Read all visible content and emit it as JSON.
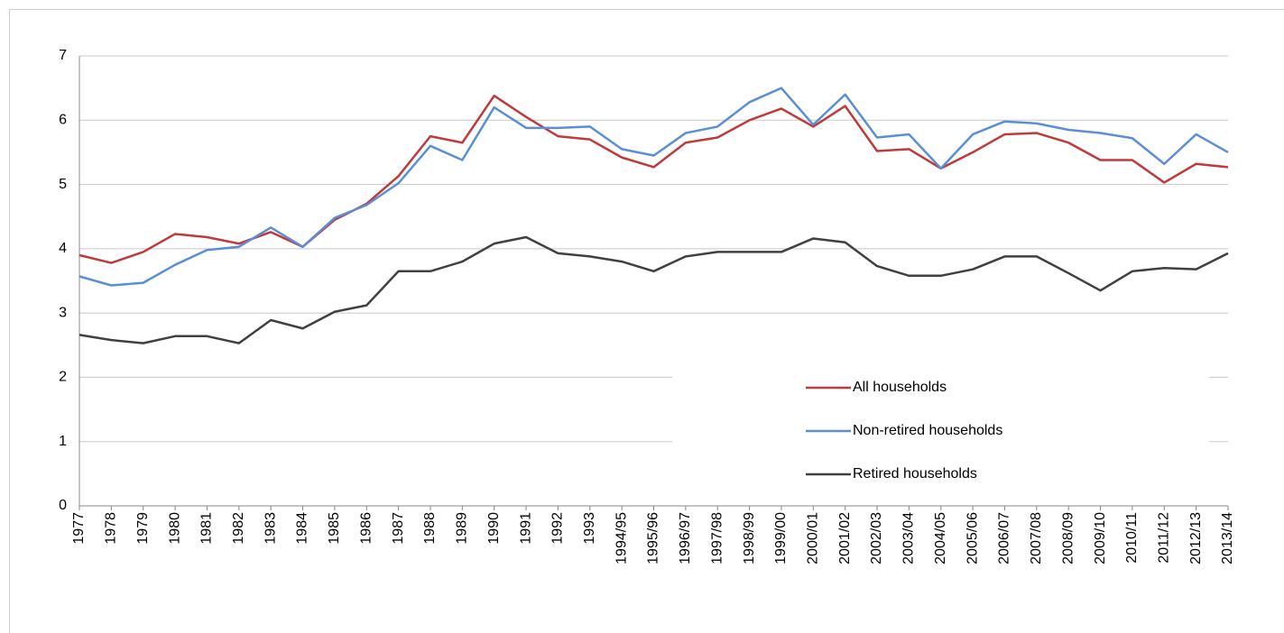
{
  "chart_data": {
    "type": "line",
    "categories": [
      "1977",
      "1978",
      "1979",
      "1980",
      "1981",
      "1982",
      "1983",
      "1984",
      "1985",
      "1986",
      "1987",
      "1988",
      "1989",
      "1990",
      "1991",
      "1992",
      "1993",
      "1994/95",
      "1995/96",
      "1996/97",
      "1997/98",
      "1998/99",
      "1999/00",
      "2000/01",
      "2001/02",
      "2002/03",
      "2003/04",
      "2004/05",
      "2005/06",
      "2006/07",
      "2007/08",
      "2008/09",
      "2009/10",
      "2010/11",
      "2011/12",
      "2012/13",
      "2013/14"
    ],
    "series": [
      {
        "name": "All households",
        "color": "#c0393b",
        "values": [
          3.9,
          3.78,
          3.95,
          4.23,
          4.18,
          4.08,
          4.26,
          4.03,
          4.45,
          4.7,
          5.13,
          5.75,
          5.65,
          6.38,
          6.05,
          5.75,
          5.7,
          5.42,
          5.27,
          5.65,
          5.73,
          6.0,
          6.18,
          5.9,
          6.22,
          5.52,
          5.55,
          5.25,
          5.5,
          5.78,
          5.8,
          5.65,
          5.38,
          5.38,
          5.03,
          5.32,
          5.27
        ]
      },
      {
        "name": "Non-retired households",
        "color": "#5a8fd8",
        "values": [
          3.57,
          3.43,
          3.47,
          3.75,
          3.98,
          4.03,
          4.33,
          4.03,
          4.48,
          4.68,
          5.02,
          5.6,
          5.38,
          6.2,
          5.88,
          5.88,
          5.9,
          5.55,
          5.45,
          5.8,
          5.9,
          6.28,
          6.5,
          5.93,
          6.4,
          5.73,
          5.78,
          5.25,
          5.78,
          5.98,
          5.95,
          5.85,
          5.8,
          5.72,
          5.32,
          5.78,
          5.5
        ]
      },
      {
        "name": "Retired households",
        "color": "#404040",
        "values": [
          2.66,
          2.58,
          2.53,
          2.64,
          2.64,
          2.53,
          2.89,
          2.76,
          3.02,
          3.12,
          3.65,
          3.65,
          3.8,
          4.08,
          4.18,
          3.93,
          3.88,
          3.8,
          3.65,
          3.88,
          3.95,
          3.95,
          3.95,
          4.16,
          4.1,
          3.73,
          3.58,
          3.58,
          3.68,
          3.88,
          3.88,
          3.62,
          3.35,
          3.65,
          3.7,
          3.68,
          3.93
        ]
      }
    ],
    "ylim": [
      0,
      7
    ],
    "yticks": [
      0,
      1,
      2,
      3,
      4,
      5,
      6,
      7
    ],
    "grid": true
  }
}
